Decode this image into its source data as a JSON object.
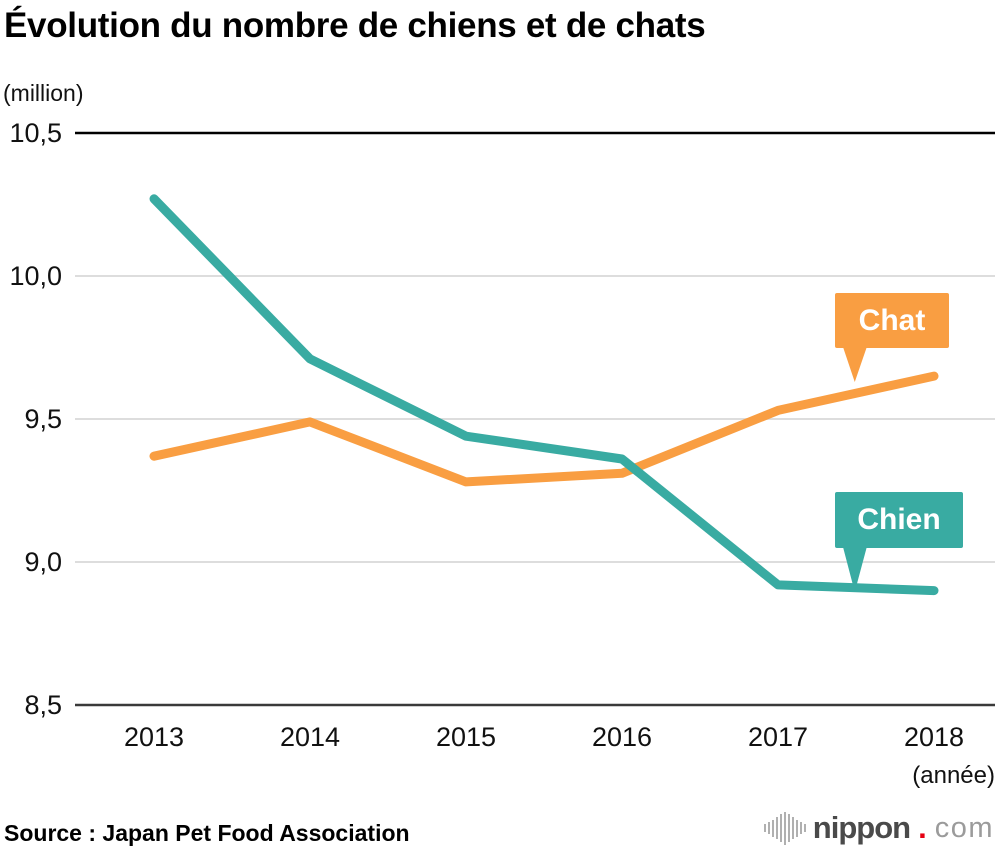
{
  "header": {
    "title": "Évolution du nombre de chiens et de chats",
    "unit": "(million)"
  },
  "chart_data": {
    "type": "line",
    "title": "Évolution du nombre de chiens et de chats",
    "unit_label": "(million)",
    "categories": [
      "2013",
      "2014",
      "2015",
      "2016",
      "2017",
      "2018"
    ],
    "xlabel": "(année)",
    "ylim": [
      8.5,
      10.5
    ],
    "grid": true,
    "yticks": [
      {
        "value": 10.5,
        "label": "10,5"
      },
      {
        "value": 10.0,
        "label": "10,0"
      },
      {
        "value": 9.5,
        "label": "9,5"
      },
      {
        "value": 9.0,
        "label": "9,0"
      },
      {
        "value": 8.5,
        "label": "8,5"
      }
    ],
    "series": [
      {
        "name": "Chat",
        "color": "#F99E42",
        "values": [
          9.37,
          9.49,
          9.28,
          9.31,
          9.53,
          9.65
        ]
      },
      {
        "name": "Chien",
        "color": "#39ABA2",
        "values": [
          10.27,
          9.71,
          9.44,
          9.36,
          8.92,
          8.9
        ]
      }
    ],
    "legend_style": "speech-bubble callouts near 2018 values"
  },
  "colors": {
    "teal": "#39ABA2",
    "orange": "#F99E42",
    "grid_light": "#D8D8D8",
    "axis_top": "#000000",
    "axis_bottom": "#3A3A3A",
    "logo_red": "#E60012"
  },
  "footer": {
    "source": "Source : Japan Pet Food Association",
    "logo": {
      "brand": "nippon",
      "dot": ".",
      "tld": "com"
    }
  }
}
